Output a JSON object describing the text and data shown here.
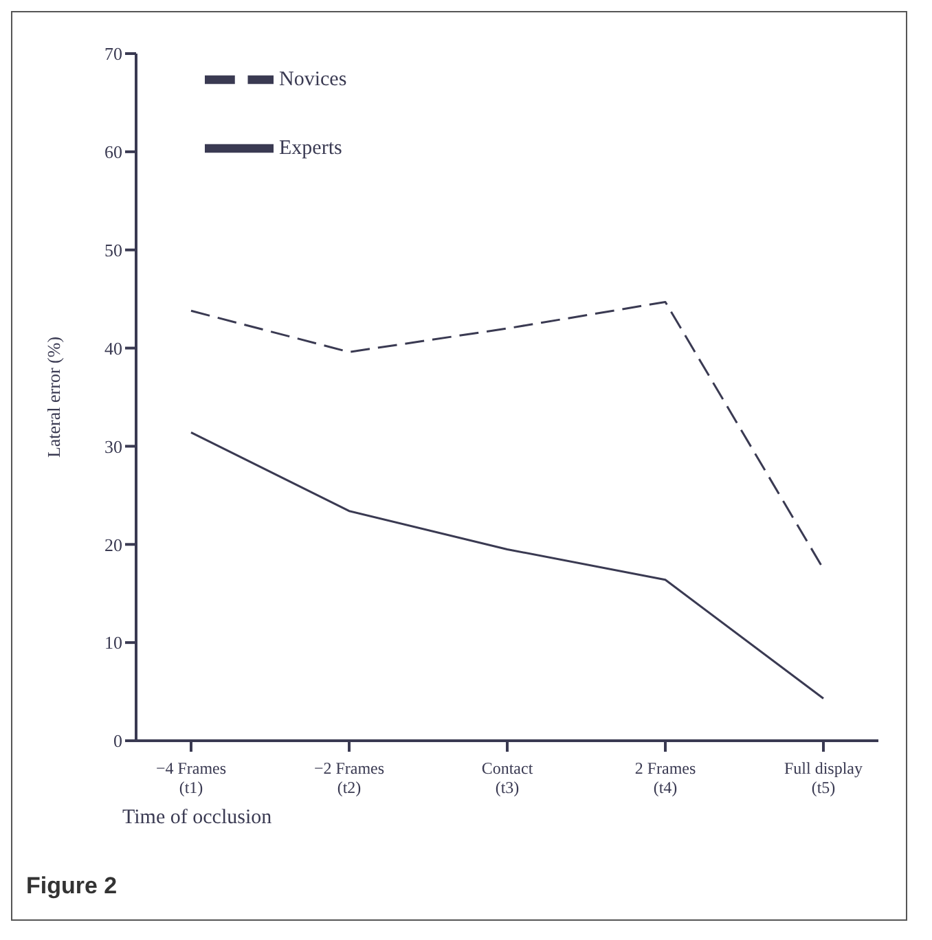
{
  "chart_data": {
    "type": "line",
    "title": "Figure 2",
    "xlabel": "Time of occlusion",
    "ylabel": "Lateral error (%)",
    "categories": [
      "−4 Frames\n(t1)",
      "−2 Frames\n(t2)",
      "Contact\n(t3)",
      "2 Frames\n(t4)",
      "Full display\n(t5)"
    ],
    "series": [
      {
        "name": "Novices",
        "color": "#3a3a52",
        "line_style": "dashed",
        "values": [
          43.8,
          39.6,
          42,
          44.7,
          17.5
        ]
      },
      {
        "name": "Experts",
        "color": "#3a3a52",
        "line_style": "solid",
        "values": [
          31.4,
          23.4,
          19.5,
          16.4,
          4.3
        ]
      }
    ],
    "ylim": [
      0,
      70
    ],
    "yticks": [
      0,
      10,
      20,
      30,
      40,
      50,
      60,
      70
    ],
    "grid": false,
    "legend": "top left",
    "marker": "none"
  }
}
